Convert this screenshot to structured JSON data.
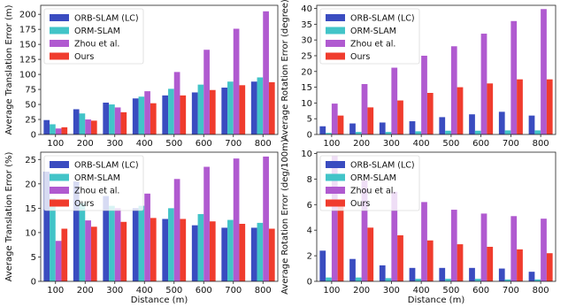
{
  "colors": {
    "orb_slam_lc": "#3a4cc0",
    "orm_slam": "#42c4c8",
    "zhou": "#b05ad0",
    "ours": "#f03c2d"
  },
  "chart_data": [
    {
      "type": "bar",
      "categories": [
        "100",
        "200",
        "300",
        "400",
        "500",
        "600",
        "700",
        "800"
      ],
      "xlabel": "",
      "ylabel": "Average Translation Error (m)",
      "ylim": [
        0,
        215
      ],
      "yticks": [
        0,
        25,
        50,
        75,
        100,
        125,
        150,
        175,
        200
      ],
      "legend_position": "top-left",
      "series": [
        {
          "name": "ORB-SLAM (LC)",
          "color": "#3a4cc0",
          "values": [
            24,
            42,
            53,
            60,
            65,
            70,
            78,
            88
          ]
        },
        {
          "name": "ORM-SLAM",
          "color": "#42c4c8",
          "values": [
            17,
            35,
            50,
            63,
            76,
            83,
            88,
            95
          ]
        },
        {
          "name": "Zhou et al.",
          "color": "#b05ad0",
          "values": [
            10,
            25,
            45,
            72,
            104,
            141,
            176,
            205
          ]
        },
        {
          "name": "Ours",
          "color": "#f03c2d",
          "values": [
            12,
            23,
            37,
            52,
            65,
            74,
            82,
            87
          ]
        }
      ]
    },
    {
      "type": "bar",
      "categories": [
        "100",
        "200",
        "300",
        "400",
        "500",
        "600",
        "700",
        "800"
      ],
      "xlabel": "",
      "ylabel": "Average Rotation Error (degree)",
      "ylim": [
        0,
        41
      ],
      "yticks": [
        0,
        5,
        10,
        15,
        20,
        25,
        30,
        35,
        40
      ],
      "legend_position": "top-left",
      "series": [
        {
          "name": "ORB-SLAM (LC)",
          "color": "#3a4cc0",
          "values": [
            2.6,
            3.5,
            3.8,
            4.2,
            5.5,
            6.4,
            7.2,
            6.0
          ]
        },
        {
          "name": "ORM-SLAM",
          "color": "#42c4c8",
          "values": [
            0.5,
            0.8,
            0.8,
            1.0,
            1.2,
            1.2,
            1.3,
            1.3
          ]
        },
        {
          "name": "Zhou et al.",
          "color": "#b05ad0",
          "values": [
            9.8,
            16.0,
            21.2,
            25.0,
            28.0,
            32.0,
            36.0,
            39.8
          ]
        },
        {
          "name": "Ours",
          "color": "#f03c2d",
          "values": [
            6.0,
            8.6,
            10.8,
            13.2,
            15.0,
            16.2,
            17.5,
            17.5
          ]
        }
      ]
    },
    {
      "type": "bar",
      "categories": [
        "100",
        "200",
        "300",
        "400",
        "500",
        "600",
        "700",
        "800"
      ],
      "xlabel": "Distance (m)",
      "ylabel": "Average Translation Error (%)",
      "ylim": [
        0,
        26.5
      ],
      "yticks": [
        0,
        5,
        10,
        15,
        20,
        25
      ],
      "legend_position": "top-left",
      "series": [
        {
          "name": "ORB-SLAM (LC)",
          "color": "#3a4cc0",
          "values": [
            22.5,
            20.5,
            17.5,
            15.0,
            12.8,
            11.5,
            11.0,
            11.0
          ]
        },
        {
          "name": "ORM-SLAM",
          "color": "#42c4c8",
          "values": [
            17.0,
            16.0,
            15.5,
            15.5,
            15.0,
            13.8,
            12.6,
            12.0
          ]
        },
        {
          "name": "Zhou et al.",
          "color": "#b05ad0",
          "values": [
            8.3,
            12.5,
            15.0,
            18.0,
            21.0,
            23.5,
            25.2,
            25.6
          ]
        },
        {
          "name": "Ours",
          "color": "#f03c2d",
          "values": [
            10.8,
            11.2,
            12.2,
            13.0,
            12.8,
            12.3,
            11.8,
            10.8
          ]
        }
      ]
    },
    {
      "type": "bar",
      "categories": [
        "100",
        "200",
        "300",
        "400",
        "500",
        "600",
        "700",
        "800"
      ],
      "xlabel": "Distance (m)",
      "ylabel": "Average Rotation Error (deg/100m)",
      "ylim": [
        0,
        10.1
      ],
      "yticks": [
        0,
        2,
        4,
        6,
        8,
        10
      ],
      "legend_position": "top-left",
      "series": [
        {
          "name": "ORB-SLAM (LC)",
          "color": "#3a4cc0",
          "values": [
            2.4,
            1.75,
            1.25,
            1.05,
            1.05,
            1.05,
            1.0,
            0.75
          ]
        },
        {
          "name": "ORM-SLAM",
          "color": "#42c4c8",
          "values": [
            0.3,
            0.3,
            0.25,
            0.2,
            0.2,
            0.2,
            0.15,
            0.15
          ]
        },
        {
          "name": "Zhou et al.",
          "color": "#b05ad0",
          "values": [
            9.8,
            7.9,
            7.0,
            6.2,
            5.6,
            5.3,
            5.1,
            4.9
          ]
        },
        {
          "name": "Ours",
          "color": "#f03c2d",
          "values": [
            6.0,
            4.2,
            3.6,
            3.2,
            2.9,
            2.7,
            2.5,
            2.2
          ]
        }
      ]
    }
  ]
}
